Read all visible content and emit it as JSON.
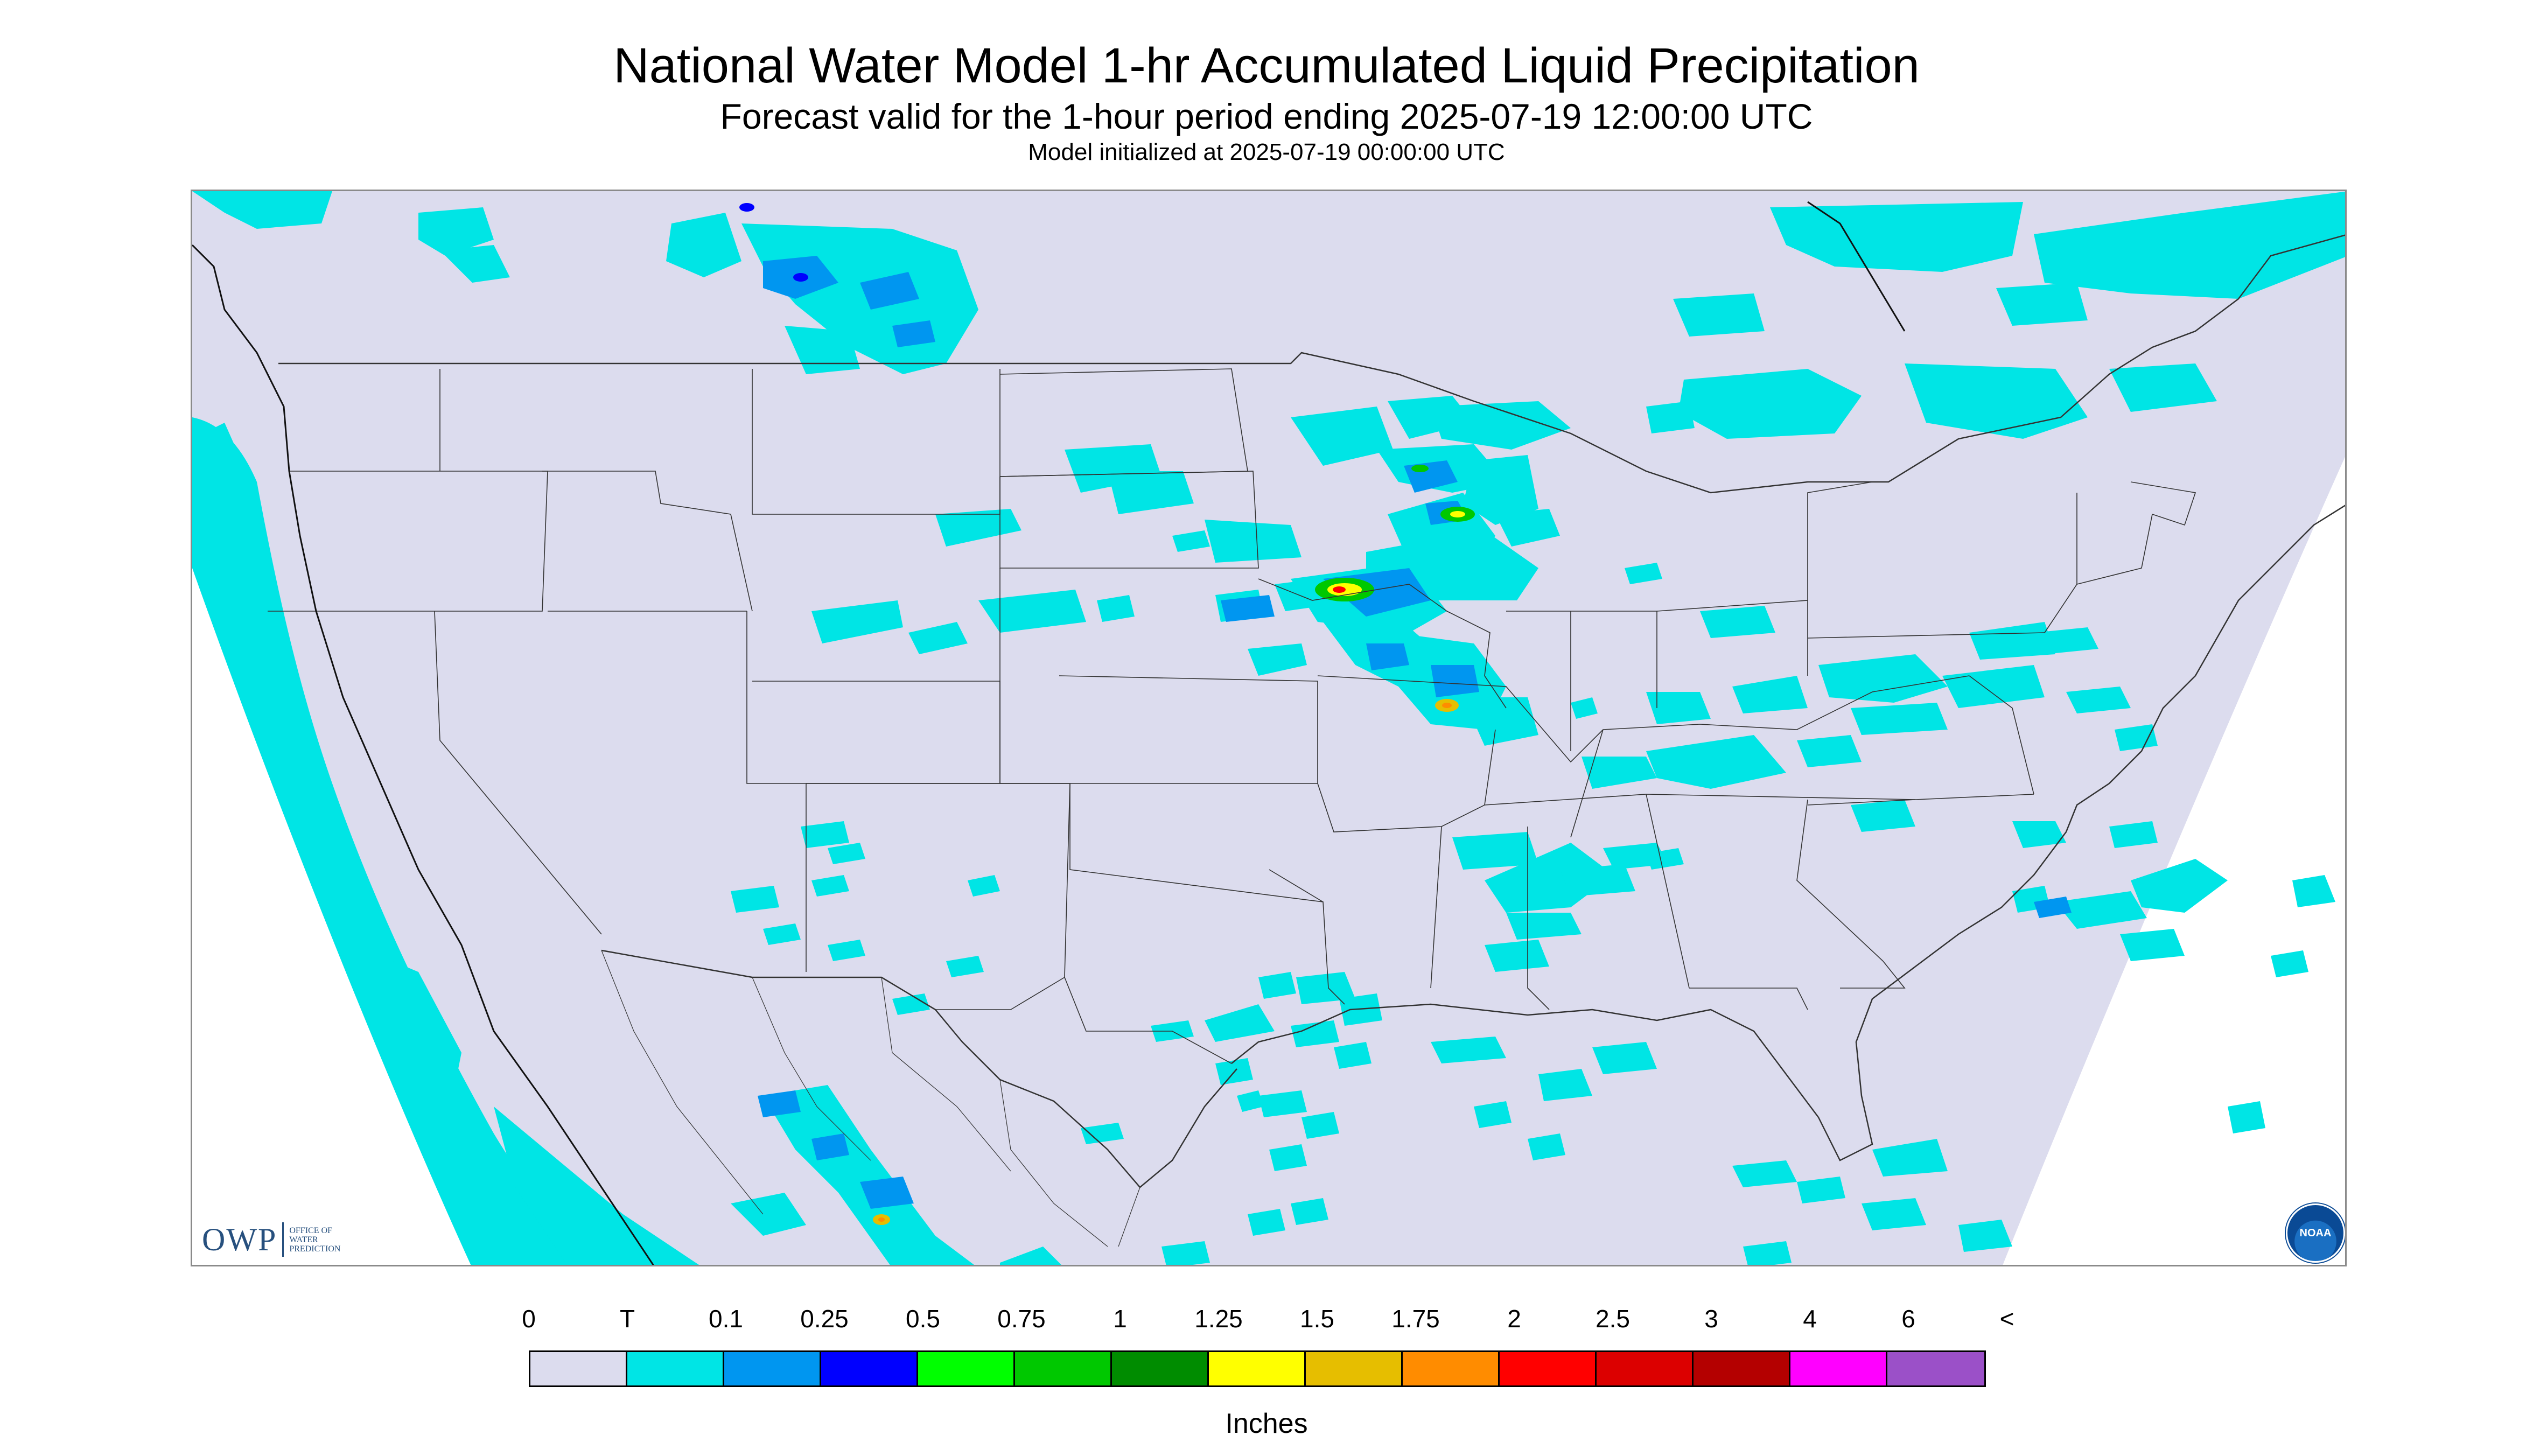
{
  "header": {
    "title": "National Water Model 1-hr Accumulated Liquid Precipitation",
    "subtitle": "Forecast valid for the 1-hour period ending 2025-07-19 12:00:00 UTC",
    "init_line": "Model initialized at 2025-07-19 00:00:00 UTC"
  },
  "logos": {
    "owp_mark": "OWP",
    "owp_text": "OFFICE OF\nWATER\nPREDICTION",
    "noaa": "NOAA"
  },
  "legend": {
    "tick_labels": [
      "0",
      "T",
      "0.1",
      "0.25",
      "0.5",
      "0.75",
      "1",
      "1.25",
      "1.5",
      "1.75",
      "2",
      "2.5",
      "3",
      "4",
      "6",
      "<"
    ],
    "colors": [
      "#dcdcee",
      "#00e5e5",
      "#0096f0",
      "#0000ff",
      "#00ff00",
      "#00c800",
      "#008c00",
      "#ffff00",
      "#e6be00",
      "#ff8c00",
      "#ff0000",
      "#dc0000",
      "#b40000",
      "#ff00ff",
      "#9b50c8"
    ],
    "units": "Inches"
  },
  "map": {
    "background_color": "#dcdcee",
    "no_data_color": "#ffffff",
    "boundary_color": "#333333",
    "precip_light_color": "#00e5e5"
  }
}
